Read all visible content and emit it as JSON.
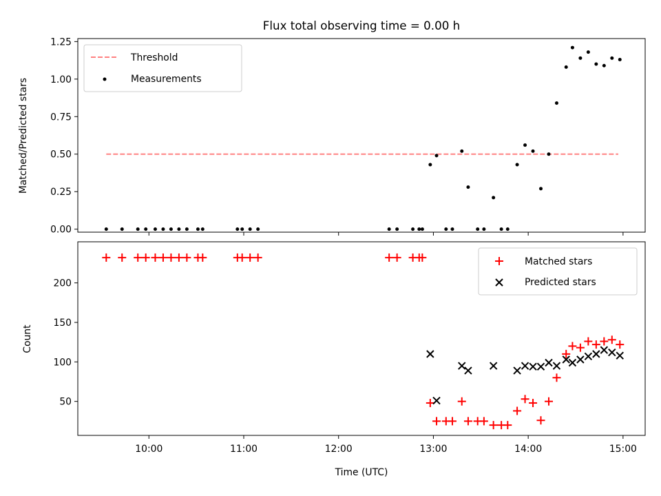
{
  "chart_data": [
    {
      "type": "scatter",
      "title": "Flux total observing time = 0.00 h",
      "xlabel": "",
      "ylabel": "Matched/Predicted stars",
      "ylim": [
        0,
        1.25
      ],
      "yticks": [
        "0.00",
        "0.25",
        "0.50",
        "0.75",
        "1.00",
        "1.25"
      ],
      "legend_position": "upper-left",
      "threshold": {
        "name": "Threshold",
        "value": 0.5,
        "x_range": [
          "09:33",
          "14:57"
        ],
        "color": "#ff8080",
        "style": "dashed"
      },
      "series": [
        {
          "name": "Measurements",
          "color": "#000000",
          "marker": "dot",
          "points": [
            [
              "09:33",
              0
            ],
            [
              "09:43",
              0
            ],
            [
              "09:53",
              0
            ],
            [
              "09:58",
              0
            ],
            [
              "10:04",
              0
            ],
            [
              "10:09",
              0
            ],
            [
              "10:14",
              0
            ],
            [
              "10:19",
              0
            ],
            [
              "10:24",
              0
            ],
            [
              "10:31",
              0
            ],
            [
              "10:34",
              0
            ],
            [
              "10:56",
              0
            ],
            [
              "10:59",
              0
            ],
            [
              "11:04",
              0
            ],
            [
              "11:09",
              0
            ],
            [
              "12:32",
              0
            ],
            [
              "12:37",
              0
            ],
            [
              "12:47",
              0
            ],
            [
              "12:51",
              0
            ],
            [
              "12:53",
              0
            ],
            [
              "12:58",
              0.43
            ],
            [
              "13:02",
              0.49
            ],
            [
              "13:08",
              0
            ],
            [
              "13:12",
              0
            ],
            [
              "13:18",
              0.52
            ],
            [
              "13:22",
              0.28
            ],
            [
              "13:28",
              0
            ],
            [
              "13:32",
              0
            ],
            [
              "13:38",
              0.21
            ],
            [
              "13:43",
              0
            ],
            [
              "13:47",
              0
            ],
            [
              "13:53",
              0.43
            ],
            [
              "13:58",
              0.56
            ],
            [
              "14:03",
              0.52
            ],
            [
              "14:08",
              0.27
            ],
            [
              "14:13",
              0.5
            ],
            [
              "14:18",
              0.84
            ],
            [
              "14:24",
              1.08
            ],
            [
              "14:28",
              1.21
            ],
            [
              "14:33",
              1.14
            ],
            [
              "14:38",
              1.18
            ],
            [
              "14:43",
              1.1
            ],
            [
              "14:48",
              1.09
            ],
            [
              "14:53",
              1.14
            ],
            [
              "14:58",
              1.13
            ]
          ]
        }
      ]
    },
    {
      "type": "scatter",
      "title": "",
      "xlabel": "Time (UTC)",
      "ylabel": "Count",
      "ylim": [
        7,
        252
      ],
      "yticks": [
        "50",
        "100",
        "150",
        "200"
      ],
      "xlim": [
        "09:15",
        "15:14"
      ],
      "xticks": [
        "10:00",
        "11:00",
        "12:00",
        "13:00",
        "14:00",
        "15:00"
      ],
      "legend_position": "upper-right",
      "series": [
        {
          "name": "Matched stars",
          "color": "#ff0000",
          "marker": "plus",
          "points": [
            [
              "09:33",
              232
            ],
            [
              "09:43",
              232
            ],
            [
              "09:53",
              232
            ],
            [
              "09:58",
              232
            ],
            [
              "10:04",
              232
            ],
            [
              "10:09",
              232
            ],
            [
              "10:14",
              232
            ],
            [
              "10:19",
              232
            ],
            [
              "10:24",
              232
            ],
            [
              "10:31",
              232
            ],
            [
              "10:34",
              232
            ],
            [
              "10:56",
              232
            ],
            [
              "10:59",
              232
            ],
            [
              "11:04",
              232
            ],
            [
              "11:09",
              232
            ],
            [
              "12:32",
              232
            ],
            [
              "12:37",
              232
            ],
            [
              "12:47",
              232
            ],
            [
              "12:51",
              232
            ],
            [
              "12:53",
              232
            ],
            [
              "12:58",
              48
            ],
            [
              "13:02",
              25
            ],
            [
              "13:08",
              25
            ],
            [
              "13:12",
              25
            ],
            [
              "13:18",
              50
            ],
            [
              "13:22",
              25
            ],
            [
              "13:28",
              25
            ],
            [
              "13:32",
              25
            ],
            [
              "13:38",
              20
            ],
            [
              "13:43",
              20
            ],
            [
              "13:47",
              20
            ],
            [
              "13:53",
              38
            ],
            [
              "13:58",
              53
            ],
            [
              "14:03",
              48
            ],
            [
              "14:08",
              26
            ],
            [
              "14:13",
              50
            ],
            [
              "14:18",
              80
            ],
            [
              "14:24",
              110
            ],
            [
              "14:28",
              120
            ],
            [
              "14:33",
              118
            ],
            [
              "14:38",
              126
            ],
            [
              "14:43",
              122
            ],
            [
              "14:48",
              126
            ],
            [
              "14:53",
              128
            ],
            [
              "14:58",
              122
            ]
          ]
        },
        {
          "name": "Predicted stars",
          "color": "#000000",
          "marker": "x",
          "points": [
            [
              "12:58",
              110
            ],
            [
              "13:02",
              51
            ],
            [
              "13:18",
              95
            ],
            [
              "13:22",
              89
            ],
            [
              "13:38",
              95
            ],
            [
              "13:53",
              89
            ],
            [
              "13:58",
              95
            ],
            [
              "14:03",
              94
            ],
            [
              "14:08",
              94
            ],
            [
              "14:13",
              99
            ],
            [
              "14:18",
              95
            ],
            [
              "14:24",
              103
            ],
            [
              "14:28",
              99
            ],
            [
              "14:33",
              103
            ],
            [
              "14:38",
              107
            ],
            [
              "14:43",
              110
            ],
            [
              "14:48",
              115
            ],
            [
              "14:53",
              112
            ],
            [
              "14:58",
              108
            ]
          ]
        }
      ]
    }
  ]
}
